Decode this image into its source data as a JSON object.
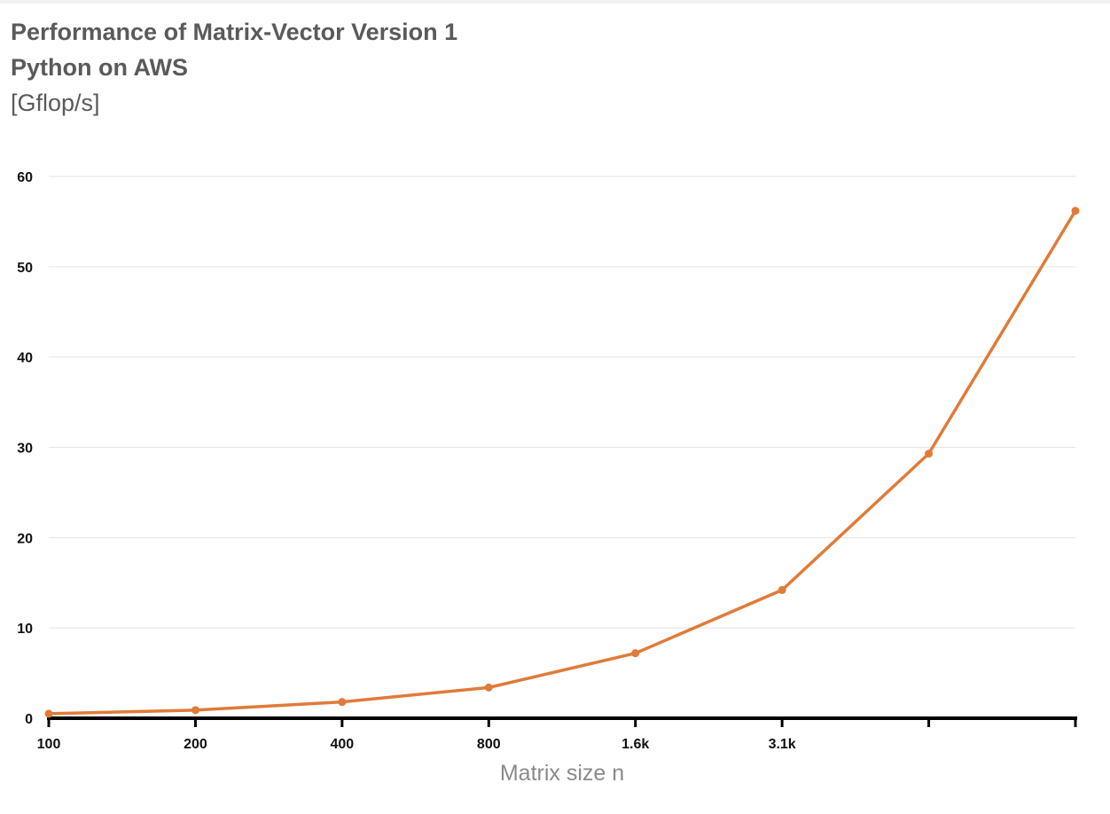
{
  "chart_data": {
    "type": "line",
    "title": "Performance of Matrix-Vector Version 1",
    "subtitle": "Python on AWS",
    "ylabel": "[Gflop/s]",
    "xlabel": "Matrix size n",
    "x_tick_labels": [
      "100",
      "200",
      "400",
      "800",
      "1.6k",
      "3.1k",
      "",
      ""
    ],
    "y_ticks": [
      0,
      10,
      20,
      30,
      40,
      50,
      60
    ],
    "ylim": [
      0,
      60
    ],
    "grid": true,
    "legend": "none",
    "series": [
      {
        "values": [
          0.5,
          0.9,
          1.8,
          3.4,
          7.2,
          14.2,
          29.3,
          56.2
        ],
        "color": "#e07b39"
      }
    ]
  }
}
